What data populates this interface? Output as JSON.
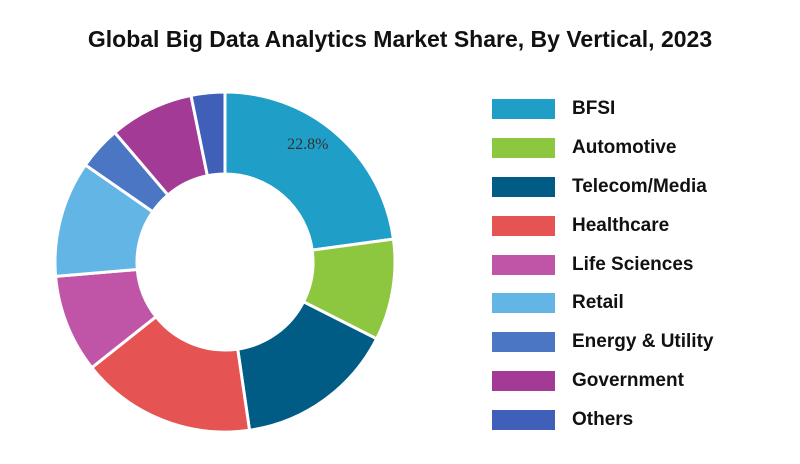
{
  "chart_data": {
    "type": "pie",
    "title": "Global Big Data Analytics Market Share, By Vertical, 2023",
    "categories": [
      "BFSI",
      "Automotive",
      "Telecom/Media",
      "Healthcare",
      "Life Sciences",
      "Retail",
      "Energy & Utility",
      "Government",
      "Others"
    ],
    "values": [
      22.8,
      9.6,
      15.2,
      16.6,
      9.3,
      11.0,
      4.1,
      8.0,
      3.2
    ],
    "colors": [
      "#1f9ec8",
      "#8dc63f",
      "#005b85",
      "#e55353",
      "#c055a8",
      "#63b5e6",
      "#4a76c4",
      "#a33a96",
      "#3f5fb8"
    ],
    "data_labels": [
      {
        "category": "BFSI",
        "text": "22.8%"
      }
    ],
    "legend_position": "right"
  }
}
